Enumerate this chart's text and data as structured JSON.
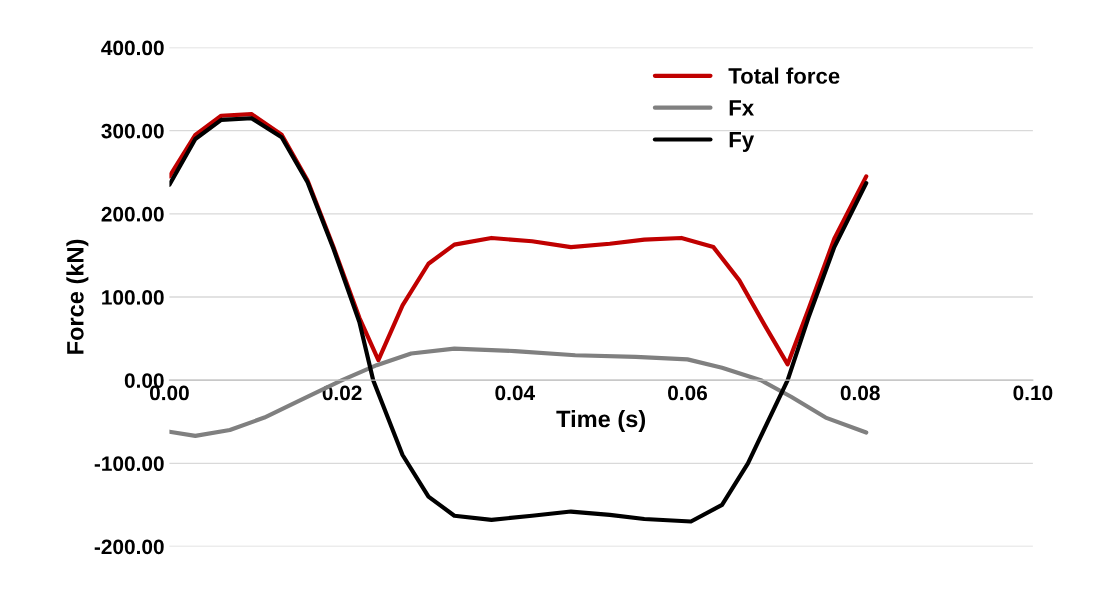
{
  "chart_data": {
    "type": "line",
    "xlabel": "Time (s)",
    "ylabel": "Force (kN)",
    "xlim": [
      0,
      0.1
    ],
    "xticks": [
      {
        "value": 0,
        "label": "0.00"
      },
      {
        "value": 0.02,
        "label": "0.02"
      },
      {
        "value": 0.04,
        "label": "0.04"
      },
      {
        "value": 0.06,
        "label": "0.06"
      },
      {
        "value": 0.08,
        "label": "0.08"
      },
      {
        "value": 0.1,
        "label": "0.10"
      }
    ],
    "ylim": [
      -200,
      400
    ],
    "yticks": [
      {
        "value": -200,
        "label": "-200.00"
      },
      {
        "value": -100,
        "label": "-100.00"
      },
      {
        "value": 0,
        "label": "0.00"
      },
      {
        "value": 100,
        "label": "100.00"
      },
      {
        "value": 200,
        "label": "200.00"
      },
      {
        "value": 300,
        "label": "300.00"
      },
      {
        "value": 400,
        "label": "400.00"
      }
    ],
    "grid": "y",
    "legend": "top right",
    "marker": "none",
    "line_style": "solid",
    "series": [
      {
        "name": "Total force",
        "color": "#c00000",
        "x": [
          0,
          0.003,
          0.006,
          0.0095,
          0.013,
          0.016,
          0.019,
          0.022,
          0.0242,
          0.027,
          0.03,
          0.033,
          0.0373,
          0.042,
          0.0465,
          0.051,
          0.055,
          0.0593,
          0.063,
          0.066,
          0.069,
          0.0716,
          0.074,
          0.077,
          0.0807
        ],
        "values": [
          245,
          295,
          318,
          320,
          295,
          240,
          160,
          75,
          24,
          90,
          140,
          163,
          171,
          167,
          160,
          164,
          169,
          171,
          160,
          120,
          65,
          19,
          85,
          170,
          245
        ]
      },
      {
        "name": "Fx",
        "color": "#808080",
        "x": [
          0,
          0.003,
          0.007,
          0.011,
          0.015,
          0.02,
          0.024,
          0.028,
          0.033,
          0.04,
          0.047,
          0.054,
          0.06,
          0.064,
          0.0685,
          0.072,
          0.076,
          0.0807
        ],
        "values": [
          -62,
          -67,
          -60,
          -45,
          -25,
          0,
          18,
          32,
          38,
          35,
          30,
          28,
          25,
          15,
          0,
          -20,
          -45,
          -63
        ]
      },
      {
        "name": "Fy",
        "color": "#000000",
        "x": [
          0,
          0.003,
          0.006,
          0.0095,
          0.013,
          0.016,
          0.019,
          0.022,
          0.0236,
          0.027,
          0.03,
          0.033,
          0.0373,
          0.042,
          0.0465,
          0.051,
          0.055,
          0.0604,
          0.064,
          0.067,
          0.0716,
          0.074,
          0.077,
          0.0807
        ],
        "values": [
          235,
          290,
          313,
          315,
          292,
          238,
          158,
          70,
          0,
          -90,
          -140,
          -163,
          -168,
          -163,
          -158,
          -162,
          -167,
          -170,
          -150,
          -100,
          0,
          75,
          160,
          237
        ]
      }
    ]
  }
}
